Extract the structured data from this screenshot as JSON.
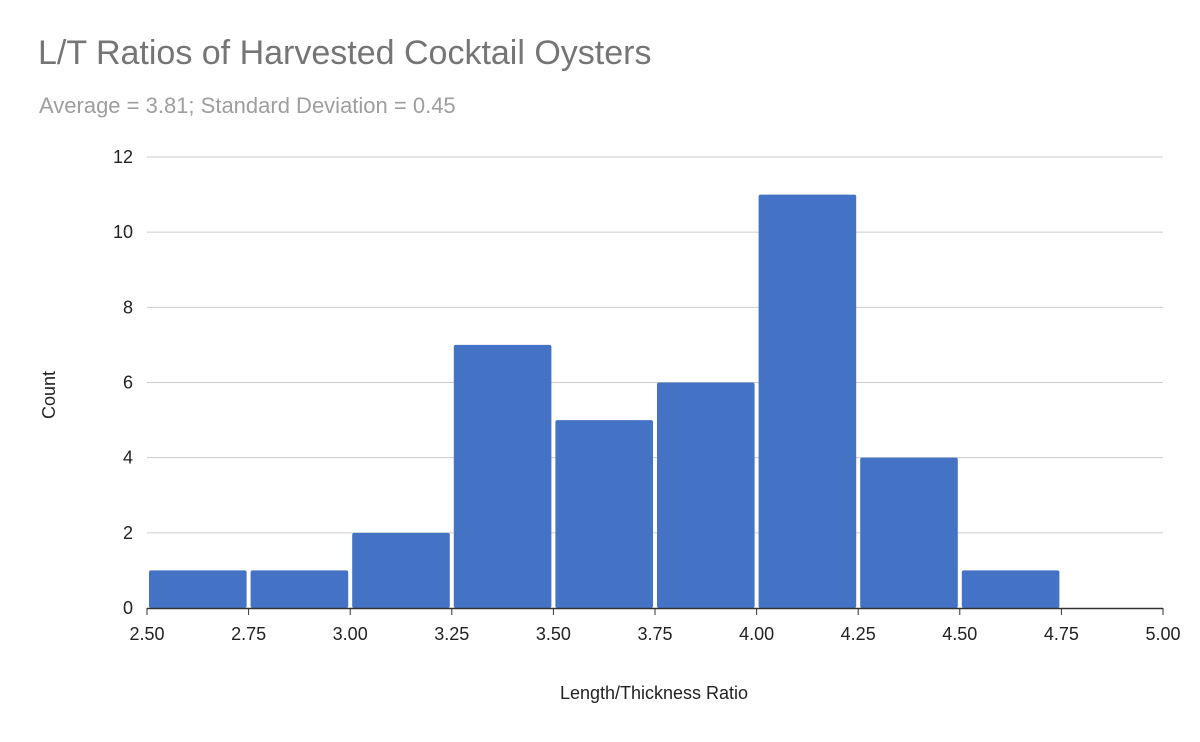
{
  "chart_data": {
    "type": "bar",
    "title": "L/T Ratios of Harvested Cocktail Oysters",
    "subtitle": "Average = 3.81; Standard Deviation = 0.45",
    "xlabel": "Length/Thickness Ratio",
    "ylabel": "Count",
    "bins": [
      {
        "start": 2.5,
        "end": 2.75,
        "count": 1
      },
      {
        "start": 2.75,
        "end": 3.0,
        "count": 1
      },
      {
        "start": 3.0,
        "end": 3.25,
        "count": 2
      },
      {
        "start": 3.25,
        "end": 3.5,
        "count": 7
      },
      {
        "start": 3.5,
        "end": 3.75,
        "count": 5
      },
      {
        "start": 3.75,
        "end": 4.0,
        "count": 6
      },
      {
        "start": 4.0,
        "end": 4.25,
        "count": 11
      },
      {
        "start": 4.25,
        "end": 4.5,
        "count": 4
      },
      {
        "start": 4.5,
        "end": 4.75,
        "count": 1
      },
      {
        "start": 4.75,
        "end": 5.0,
        "count": 0
      }
    ],
    "x_ticks": [
      "2.50",
      "2.75",
      "3.00",
      "3.25",
      "3.50",
      "3.75",
      "4.00",
      "4.25",
      "4.50",
      "4.75",
      "5.00"
    ],
    "y_ticks": [
      "0",
      "2",
      "4",
      "6",
      "8",
      "10",
      "12"
    ],
    "xlim": [
      2.5,
      5.0
    ],
    "ylim": [
      0,
      12
    ],
    "grid": true,
    "bar_color": "#4472c4"
  }
}
